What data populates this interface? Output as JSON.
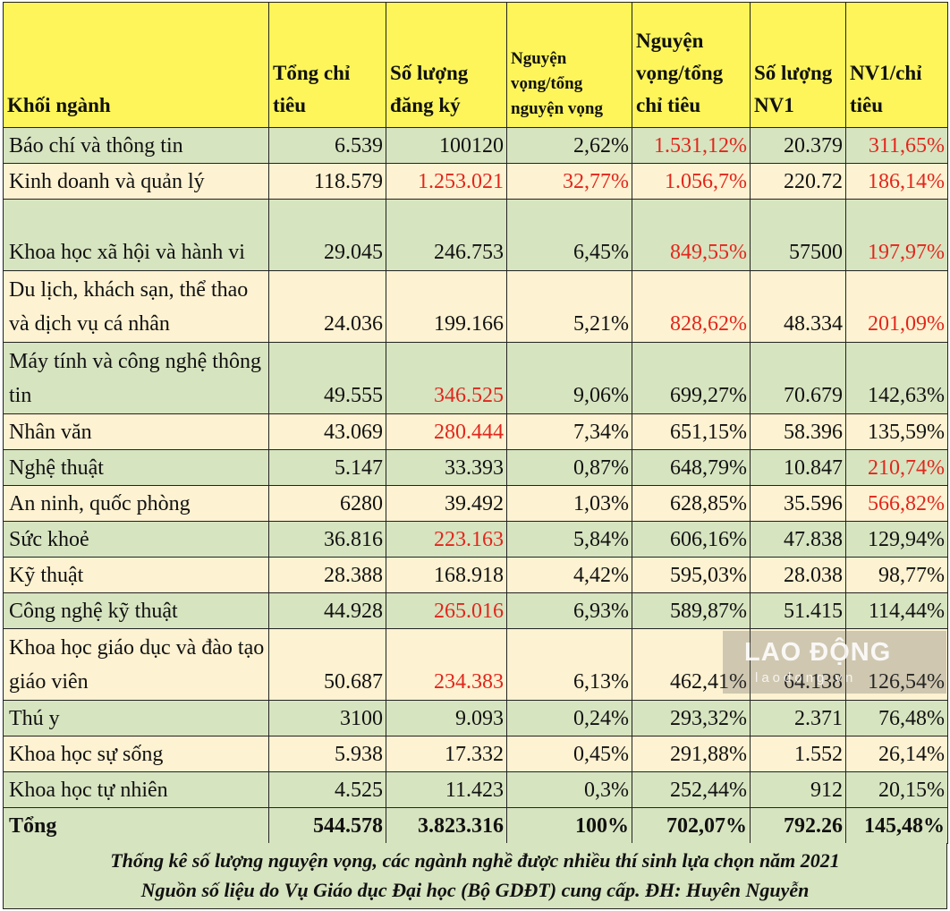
{
  "headers": [
    "Khối ngành",
    "Tổng chỉ tiêu",
    "Số lượng đăng ký",
    "Nguyện vọng/tổng nguyện vọng",
    "Nguyện vọng/tổng chỉ tiêu",
    "Số lượng NV1",
    "NV1/chỉ tiêu"
  ],
  "rows": [
    {
      "name": "Báo chí và thông tin",
      "chi_tieu": "6.539",
      "dang_ky": "100120",
      "nv_tong_nv": "2,62%",
      "nv_tong_ct": "1.531,12%",
      "nv1": "20.379",
      "nv1_ct": "311,65%",
      "red": [
        "nv_tong_ct",
        "nv1_ct"
      ]
    },
    {
      "name": "Kinh doanh và quản lý",
      "chi_tieu": "118.579",
      "dang_ky": "1.253.021",
      "nv_tong_nv": "32,77%",
      "nv_tong_ct": "1.056,7%",
      "nv1": "220.72",
      "nv1_ct": "186,14%",
      "red": [
        "dang_ky",
        "nv_tong_nv",
        "nv_tong_ct",
        "nv1_ct"
      ]
    },
    {
      "name": "Khoa học xã hội và hành vi",
      "chi_tieu": "29.045",
      "dang_ky": "246.753",
      "nv_tong_nv": "6,45%",
      "nv_tong_ct": "849,55%",
      "nv1": "57500",
      "nv1_ct": "197,97%",
      "red": [
        "nv_tong_ct",
        "nv1_ct"
      ]
    },
    {
      "name": "Du lịch, khách sạn, thể thao và dịch vụ cá nhân",
      "chi_tieu": "24.036",
      "dang_ky": "199.166",
      "nv_tong_nv": "5,21%",
      "nv_tong_ct": "828,62%",
      "nv1": "48.334",
      "nv1_ct": "201,09%",
      "red": [
        "nv_tong_ct",
        "nv1_ct"
      ]
    },
    {
      "name": "Máy tính và công nghệ thông tin",
      "chi_tieu": "49.555",
      "dang_ky": "346.525",
      "nv_tong_nv": "9,06%",
      "nv_tong_ct": "699,27%",
      "nv1": "70.679",
      "nv1_ct": "142,63%",
      "red": [
        "dang_ky"
      ]
    },
    {
      "name": "Nhân văn",
      "chi_tieu": "43.069",
      "dang_ky": "280.444",
      "nv_tong_nv": "7,34%",
      "nv_tong_ct": "651,15%",
      "nv1": "58.396",
      "nv1_ct": "135,59%",
      "red": [
        "dang_ky"
      ]
    },
    {
      "name": "Nghệ thuật",
      "chi_tieu": "5.147",
      "dang_ky": "33.393",
      "nv_tong_nv": "0,87%",
      "nv_tong_ct": "648,79%",
      "nv1": "10.847",
      "nv1_ct": "210,74%",
      "red": [
        "nv1_ct"
      ]
    },
    {
      "name": "An ninh, quốc phòng",
      "chi_tieu": "6280",
      "dang_ky": "39.492",
      "nv_tong_nv": "1,03%",
      "nv_tong_ct": "628,85%",
      "nv1": "35.596",
      "nv1_ct": "566,82%",
      "red": [
        "nv1_ct"
      ]
    },
    {
      "name": "Sức khoẻ",
      "chi_tieu": "36.816",
      "dang_ky": "223.163",
      "nv_tong_nv": "5,84%",
      "nv_tong_ct": "606,16%",
      "nv1": "47.838",
      "nv1_ct": "129,94%",
      "red": [
        "dang_ky"
      ]
    },
    {
      "name": "Kỹ thuật",
      "chi_tieu": "28.388",
      "dang_ky": "168.918",
      "nv_tong_nv": "4,42%",
      "nv_tong_ct": "595,03%",
      "nv1": "28.038",
      "nv1_ct": "98,77%",
      "red": []
    },
    {
      "name": "Công nghệ kỹ thuật",
      "chi_tieu": "44.928",
      "dang_ky": "265.016",
      "nv_tong_nv": "6,93%",
      "nv_tong_ct": "589,87%",
      "nv1": "51.415",
      "nv1_ct": "114,44%",
      "red": [
        "dang_ky"
      ]
    },
    {
      "name": "Khoa học giáo dục và đào tạo giáo viên",
      "chi_tieu": "50.687",
      "dang_ky": "234.383",
      "nv_tong_nv": "6,13%",
      "nv_tong_ct": "462,41%",
      "nv1": "64.138",
      "nv1_ct": "126,54%",
      "red": [
        "dang_ky"
      ]
    },
    {
      "name": "Thú y",
      "chi_tieu": "3100",
      "dang_ky": "9.093",
      "nv_tong_nv": "0,24%",
      "nv_tong_ct": "293,32%",
      "nv1": "2.371",
      "nv1_ct": "76,48%",
      "red": []
    },
    {
      "name": "Khoa học sự sống",
      "chi_tieu": "5.938",
      "dang_ky": "17.332",
      "nv_tong_nv": "0,45%",
      "nv_tong_ct": "291,88%",
      "nv1": "1.552",
      "nv1_ct": "26,14%",
      "red": []
    },
    {
      "name": "Khoa học tự nhiên",
      "chi_tieu": "4.525",
      "dang_ky": "11.423",
      "nv_tong_nv": "0,3%",
      "nv_tong_ct": "252,44%",
      "nv1": "912",
      "nv1_ct": "20,15%",
      "red": []
    }
  ],
  "total": {
    "name": "Tổng",
    "chi_tieu": "544.578",
    "dang_ky": "3.823.316",
    "nv_tong_nv": "100%",
    "nv_tong_ct": "702,07%",
    "nv1": "792.26",
    "nv1_ct": "145,48%"
  },
  "caption": {
    "line1": "Thống kê số lượng nguyện vọng, các ngành nghề được nhiều thí sinh lựa chọn năm 2021",
    "line2": "Nguồn số liệu do Vụ Giáo dục Đại học (Bộ GDĐT) cung cấp. ĐH: Huyên Nguyễn"
  },
  "watermark": {
    "logo": "LAO ĐỘNG",
    "site": "laodong.vn"
  },
  "colors": {
    "header_bg": "#fdf55a",
    "green_row": "#d7e4c0",
    "cream_row": "#fdf2d1",
    "highlight_text": "#e2261d"
  }
}
